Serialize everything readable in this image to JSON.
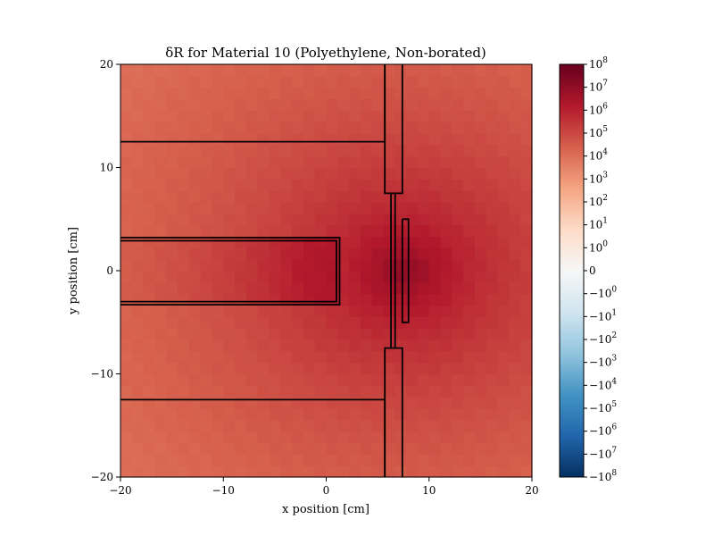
{
  "chart_data": {
    "type": "heatmap",
    "title": "δR for Material 10 (Polyethylene, Non-borated)",
    "xlabel": "x position [cm]",
    "ylabel": "y position [cm]",
    "xlim": [
      -20,
      20
    ],
    "ylim": [
      -20,
      20
    ],
    "xticks": [
      -20,
      -10,
      0,
      10,
      20
    ],
    "yticks": [
      -20,
      -10,
      0,
      10,
      20
    ],
    "xtick_labels": [
      "−20",
      "−10",
      "0",
      "10",
      "20"
    ],
    "ytick_labels": [
      "−20",
      "−10",
      "0",
      "10",
      "20"
    ],
    "grid": false,
    "colormap": "RdBu_r",
    "color_scale": "symlog",
    "clim": [
      -100000000,
      100000000
    ],
    "field_peak": {
      "x": 7.5,
      "y": 0,
      "log10_value": 7.2
    },
    "colorbar": {
      "ticks": [
        {
          "base": "10",
          "exp": "8",
          "value": 100000000
        },
        {
          "base": "10",
          "exp": "7",
          "value": 10000000
        },
        {
          "base": "10",
          "exp": "6",
          "value": 1000000
        },
        {
          "base": "10",
          "exp": "5",
          "value": 100000
        },
        {
          "base": "10",
          "exp": "4",
          "value": 10000
        },
        {
          "base": "10",
          "exp": "3",
          "value": 1000
        },
        {
          "base": "10",
          "exp": "2",
          "value": 100
        },
        {
          "base": "10",
          "exp": "1",
          "value": 10
        },
        {
          "base": "10",
          "exp": "0",
          "value": 1
        },
        {
          "base": "0",
          "exp": "",
          "value": 0
        },
        {
          "base": "−10",
          "exp": "0",
          "value": -1
        },
        {
          "base": "−10",
          "exp": "1",
          "value": -10
        },
        {
          "base": "−10",
          "exp": "2",
          "value": -100
        },
        {
          "base": "−10",
          "exp": "3",
          "value": -1000
        },
        {
          "base": "−10",
          "exp": "4",
          "value": -10000
        },
        {
          "base": "−10",
          "exp": "5",
          "value": -100000
        },
        {
          "base": "−10",
          "exp": "6",
          "value": -1000000
        },
        {
          "base": "−10",
          "exp": "7",
          "value": -10000000
        },
        {
          "base": "−10",
          "exp": "8",
          "value": -100000000
        }
      ]
    },
    "geometry_outlines": [
      {
        "name": "upper-slab",
        "points": [
          [
            -20,
            12.5
          ],
          [
            5.7,
            12.5
          ],
          [
            5.7,
            20
          ]
        ]
      },
      {
        "name": "lower-slab",
        "points": [
          [
            -20,
            -12.5
          ],
          [
            5.7,
            -12.5
          ],
          [
            5.7,
            -20
          ]
        ]
      },
      {
        "name": "rod-outer",
        "points": [
          [
            -20,
            3.2
          ],
          [
            1.3,
            3.2
          ],
          [
            1.3,
            -3.3
          ],
          [
            -20,
            -3.3
          ]
        ]
      },
      {
        "name": "rod-inner",
        "points": [
          [
            -20,
            2.9
          ],
          [
            1.0,
            2.9
          ],
          [
            1.0,
            -3.0
          ],
          [
            -20,
            -3.0
          ]
        ]
      },
      {
        "name": "plate-inner",
        "points": [
          [
            6.3,
            7.5
          ],
          [
            6.7,
            7.5
          ],
          [
            6.7,
            -7.5
          ],
          [
            6.3,
            -7.5
          ]
        ]
      },
      {
        "name": "plate-upper",
        "points": [
          [
            5.7,
            20
          ],
          [
            5.7,
            7.5
          ],
          [
            6.3,
            7.5
          ],
          [
            6.3,
            -7.5
          ],
          [
            5.7,
            -7.5
          ],
          [
            5.7,
            -20
          ]
        ]
      },
      {
        "name": "plate-upper-right",
        "points": [
          [
            7.4,
            20
          ],
          [
            7.4,
            7.5
          ],
          [
            6.7,
            7.5
          ]
        ]
      },
      {
        "name": "plate-lower-right",
        "points": [
          [
            7.4,
            -20
          ],
          [
            7.4,
            -7.5
          ],
          [
            6.7,
            -7.5
          ]
        ]
      },
      {
        "name": "target-strip",
        "points": [
          [
            7.4,
            5
          ],
          [
            8.0,
            5
          ],
          [
            8.0,
            -5
          ],
          [
            7.4,
            -5
          ],
          [
            7.4,
            5
          ]
        ]
      }
    ]
  }
}
